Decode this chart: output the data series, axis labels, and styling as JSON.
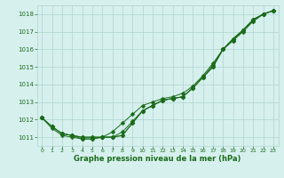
{
  "x": [
    0,
    1,
    2,
    3,
    4,
    5,
    6,
    7,
    8,
    9,
    10,
    11,
    12,
    13,
    14,
    15,
    16,
    17,
    18,
    19,
    20,
    21,
    22,
    23
  ],
  "line1": [
    1012.1,
    1011.6,
    1011.2,
    1011.1,
    1010.9,
    1010.9,
    1011.0,
    1011.0,
    1011.3,
    1011.9,
    1012.5,
    1012.8,
    1013.1,
    1013.2,
    1013.3,
    1013.8,
    1014.4,
    1015.1,
    1016.0,
    1016.6,
    1017.1,
    1017.7,
    1018.0,
    1018.2
  ],
  "line2": [
    1012.1,
    1011.6,
    1011.2,
    1011.1,
    1011.0,
    1011.0,
    1011.0,
    1011.3,
    1011.8,
    1012.3,
    1012.8,
    1013.0,
    1013.2,
    1013.3,
    1013.5,
    1013.9,
    1014.5,
    1015.2,
    1016.0,
    1016.6,
    1017.1,
    1017.7,
    1018.0,
    1018.2
  ],
  "line3": [
    1012.1,
    1011.5,
    1011.1,
    1011.0,
    1010.9,
    1010.9,
    1011.0,
    1011.0,
    1011.1,
    1011.8,
    1012.5,
    1012.8,
    1013.1,
    1013.2,
    1013.3,
    1013.8,
    1014.4,
    1015.0,
    1016.0,
    1016.5,
    1017.0,
    1017.6,
    1018.0,
    1018.2
  ],
  "line4": [
    1012.1,
    1011.6,
    1011.2,
    1011.1,
    1011.0,
    1011.0,
    1011.0,
    1011.0,
    1011.1,
    1011.8,
    1012.5,
    1012.8,
    1013.1,
    1013.2,
    1013.3,
    1013.8,
    1014.4,
    1015.0,
    1016.0,
    1016.5,
    1017.1,
    1017.6,
    1018.0,
    1018.2
  ],
  "line_color": "#1a6b1a",
  "markersize": 2.5,
  "bg_color": "#d6f0ee",
  "grid_color": "#b0d4cf",
  "text_color": "#1a6b1a",
  "xlabel": "Graphe pression niveau de la mer (hPa)",
  "ylim": [
    1010.5,
    1018.5
  ],
  "xlim": [
    -0.5,
    23.5
  ],
  "yticks": [
    1011,
    1012,
    1013,
    1014,
    1015,
    1016,
    1017,
    1018
  ],
  "xticks": [
    0,
    1,
    2,
    3,
    4,
    5,
    6,
    7,
    8,
    9,
    10,
    11,
    12,
    13,
    14,
    15,
    16,
    17,
    18,
    19,
    20,
    21,
    22,
    23
  ]
}
